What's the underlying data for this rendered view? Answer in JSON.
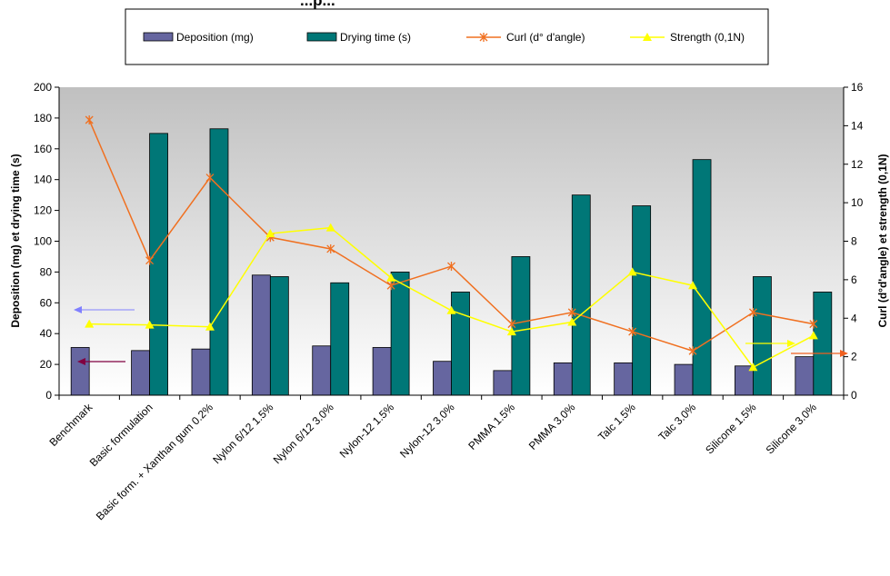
{
  "chart_data": {
    "type": "bar",
    "title": "...p...",
    "categories": [
      "Benchmark",
      "Basic formulation",
      "Basic form. + Xanthan gum 0.2%",
      "Nylon 6/12 1.5%",
      "Nylon 6/12 3.0%",
      "Nylon-12 1.5%",
      "Nylon-12 3.0%",
      "PMMA 1.5%",
      "PMMA 3.0%",
      "Talc 1.5%",
      "Talc 3.0%",
      "Silicone 1.5%",
      "Silicone 3.0%"
    ],
    "ylabel": "Deposition (mg) et drying time (s)",
    "y2label": "Curl (d°d'angle) et strength (0,1N)",
    "ylim": [
      0,
      200
    ],
    "y2lim": [
      0,
      16
    ],
    "yticks": [
      0,
      20,
      40,
      60,
      80,
      100,
      120,
      140,
      160,
      180,
      200
    ],
    "y2ticks": [
      0,
      2,
      4,
      6,
      8,
      10,
      12,
      14,
      16
    ],
    "grid": false,
    "legend_position": "top",
    "series": [
      {
        "name": "Deposition (mg)",
        "kind": "bar",
        "axis": "left",
        "color": "#6666A0",
        "values": [
          31,
          29,
          30,
          78,
          32,
          31,
          22,
          16,
          21,
          21,
          20,
          19,
          25
        ]
      },
      {
        "name": "Drying time (s)",
        "kind": "bar",
        "axis": "left",
        "color": "#007777",
        "values": [
          null,
          170,
          173,
          77,
          73,
          80,
          67,
          90,
          130,
          123,
          153,
          77,
          67
        ]
      },
      {
        "name": "Curl (d° d'angle)",
        "kind": "line",
        "axis": "right",
        "color": "#F07020",
        "values": [
          14.3,
          7.0,
          11.3,
          8.2,
          7.6,
          5.7,
          6.7,
          3.7,
          4.3,
          3.3,
          2.3,
          4.3,
          3.7
        ]
      },
      {
        "name": "Strength (0,1N)",
        "kind": "line",
        "axis": "right",
        "color": "#FFFF00",
        "values": [
          3.7,
          3.65,
          3.55,
          8.4,
          8.7,
          6.1,
          4.4,
          3.3,
          3.8,
          6.4,
          5.7,
          1.45,
          3.1
        ]
      }
    ]
  }
}
